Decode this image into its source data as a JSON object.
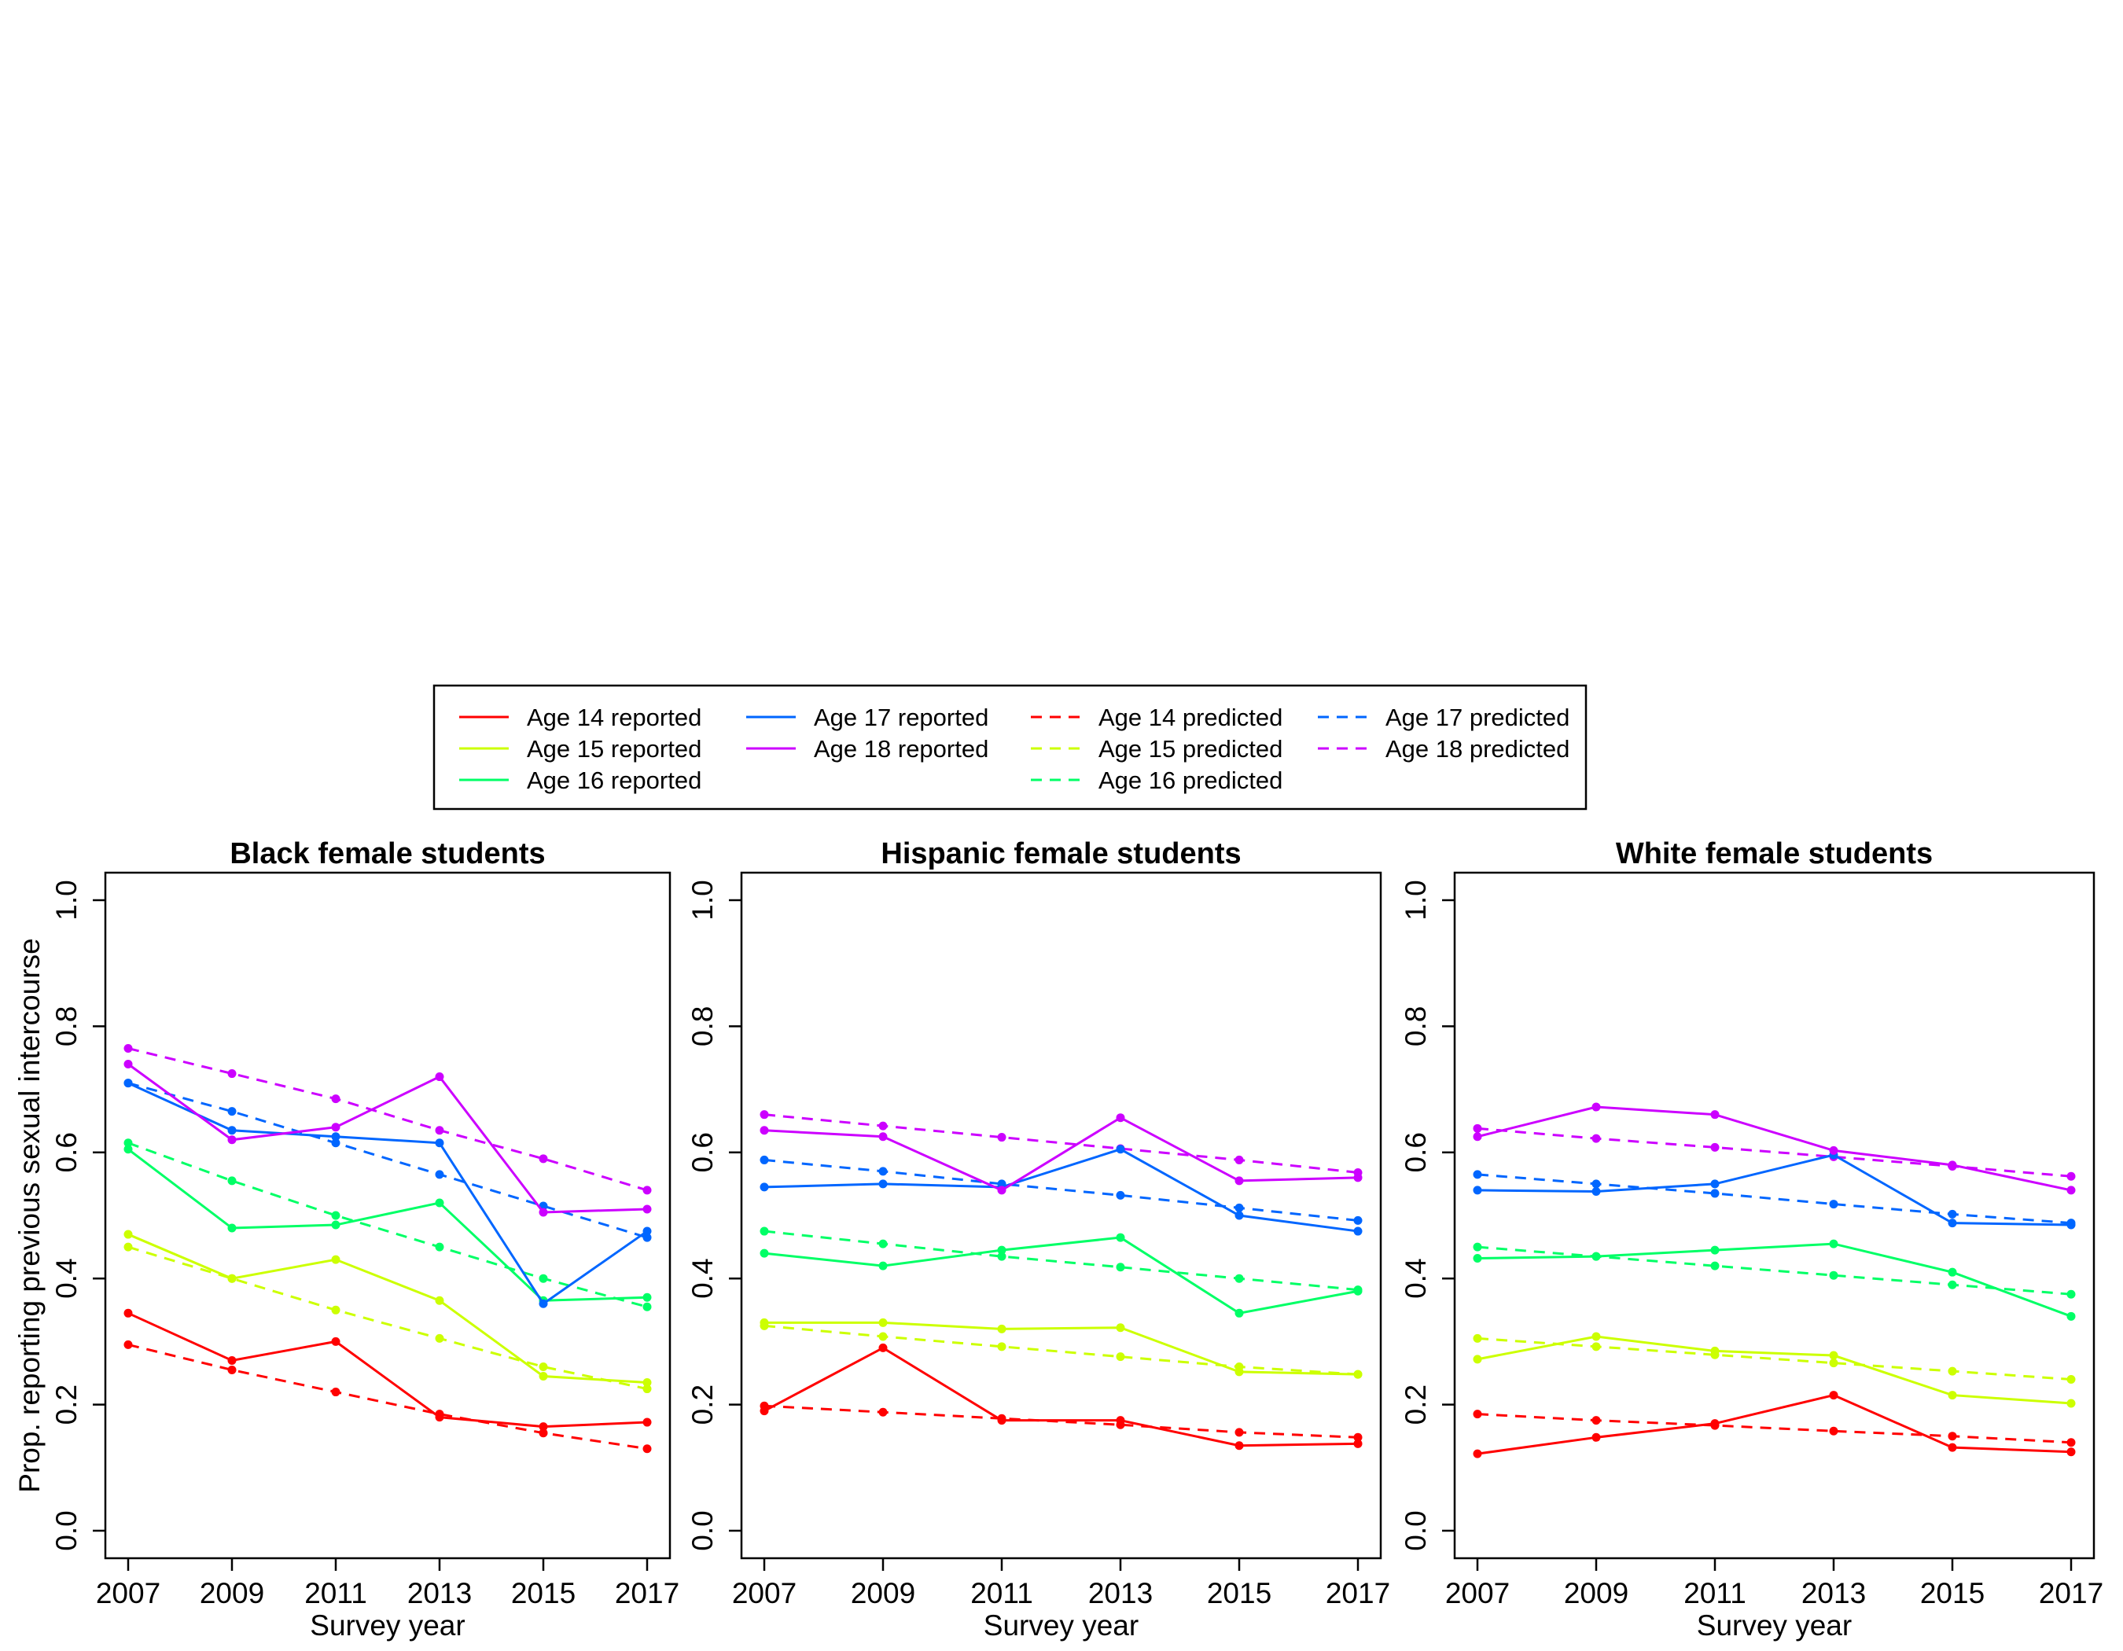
{
  "chart_data": {
    "type": "line",
    "x": [
      2007,
      2009,
      2011,
      2013,
      2015,
      2017
    ],
    "xlim": [
      2007,
      2017
    ],
    "ylim": [
      0,
      1
    ],
    "yticks": [
      "0.0",
      "0.2",
      "0.4",
      "0.6",
      "0.8",
      "1.0"
    ],
    "xticks": [
      "2007",
      "2009",
      "2011",
      "2013",
      "2015",
      "2017"
    ],
    "ylabel": "Prop. reporting previous sexual intercourse",
    "xlabel": "Survey year",
    "grid": false,
    "legend_position": "top",
    "legend": [
      {
        "label": "Age 14 reported",
        "color": "#FF0000",
        "dash": false
      },
      {
        "label": "Age 15 reported",
        "color": "#CCFF00",
        "dash": false
      },
      {
        "label": "Age 16 reported",
        "color": "#00FF66",
        "dash": false
      },
      {
        "label": "Age 17 reported",
        "color": "#0066FF",
        "dash": false
      },
      {
        "label": "Age 18 reported",
        "color": "#CC00FF",
        "dash": false
      },
      {
        "label": "Age 14 predicted",
        "color": "#FF0000",
        "dash": true
      },
      {
        "label": "Age 15 predicted",
        "color": "#CCFF00",
        "dash": true
      },
      {
        "label": "Age 16 predicted",
        "color": "#00FF66",
        "dash": true
      },
      {
        "label": "Age 17 predicted",
        "color": "#0066FF",
        "dash": true
      },
      {
        "label": "Age 18 predicted",
        "color": "#CC00FF",
        "dash": true
      }
    ],
    "panels": [
      {
        "title": "Black female students",
        "series": [
          {
            "age": 14,
            "kind": "reported",
            "color": "#FF0000",
            "values": [
              0.345,
              0.27,
              0.3,
              0.18,
              0.165,
              0.172
            ]
          },
          {
            "age": 15,
            "kind": "reported",
            "color": "#CCFF00",
            "values": [
              0.47,
              0.4,
              0.43,
              0.365,
              0.245,
              0.235
            ]
          },
          {
            "age": 16,
            "kind": "reported",
            "color": "#00FF66",
            "values": [
              0.605,
              0.48,
              0.485,
              0.52,
              0.365,
              0.37
            ]
          },
          {
            "age": 17,
            "kind": "reported",
            "color": "#0066FF",
            "values": [
              0.71,
              0.635,
              0.625,
              0.615,
              0.36,
              0.475
            ]
          },
          {
            "age": 18,
            "kind": "reported",
            "color": "#CC00FF",
            "values": [
              0.74,
              0.62,
              0.64,
              0.72,
              0.505,
              0.51
            ]
          },
          {
            "age": 14,
            "kind": "predicted",
            "color": "#FF0000",
            "values": [
              0.295,
              0.255,
              0.22,
              0.185,
              0.155,
              0.13
            ]
          },
          {
            "age": 15,
            "kind": "predicted",
            "color": "#CCFF00",
            "values": [
              0.45,
              0.4,
              0.35,
              0.305,
              0.26,
              0.225
            ]
          },
          {
            "age": 16,
            "kind": "predicted",
            "color": "#00FF66",
            "values": [
              0.615,
              0.555,
              0.5,
              0.45,
              0.4,
              0.355
            ]
          },
          {
            "age": 17,
            "kind": "predicted",
            "color": "#0066FF",
            "values": [
              0.71,
              0.665,
              0.615,
              0.565,
              0.515,
              0.465
            ]
          },
          {
            "age": 18,
            "kind": "predicted",
            "color": "#CC00FF",
            "values": [
              0.765,
              0.725,
              0.685,
              0.635,
              0.59,
              0.54
            ]
          }
        ]
      },
      {
        "title": "Hispanic female students",
        "series": [
          {
            "age": 14,
            "kind": "reported",
            "color": "#FF0000",
            "values": [
              0.19,
              0.29,
              0.175,
              0.175,
              0.135,
              0.138
            ]
          },
          {
            "age": 15,
            "kind": "reported",
            "color": "#CCFF00",
            "values": [
              0.33,
              0.33,
              0.32,
              0.322,
              0.252,
              0.248
            ]
          },
          {
            "age": 16,
            "kind": "reported",
            "color": "#00FF66",
            "values": [
              0.44,
              0.42,
              0.445,
              0.465,
              0.345,
              0.38
            ]
          },
          {
            "age": 17,
            "kind": "reported",
            "color": "#0066FF",
            "values": [
              0.545,
              0.55,
              0.545,
              0.605,
              0.5,
              0.475
            ]
          },
          {
            "age": 18,
            "kind": "reported",
            "color": "#CC00FF",
            "values": [
              0.635,
              0.625,
              0.54,
              0.655,
              0.555,
              0.56
            ]
          },
          {
            "age": 14,
            "kind": "predicted",
            "color": "#FF0000",
            "values": [
              0.198,
              0.188,
              0.178,
              0.168,
              0.156,
              0.148
            ]
          },
          {
            "age": 15,
            "kind": "predicted",
            "color": "#CCFF00",
            "values": [
              0.325,
              0.308,
              0.292,
              0.276,
              0.26,
              0.248
            ]
          },
          {
            "age": 16,
            "kind": "predicted",
            "color": "#00FF66",
            "values": [
              0.475,
              0.455,
              0.435,
              0.418,
              0.4,
              0.382
            ]
          },
          {
            "age": 17,
            "kind": "predicted",
            "color": "#0066FF",
            "values": [
              0.588,
              0.57,
              0.55,
              0.532,
              0.512,
              0.492
            ]
          },
          {
            "age": 18,
            "kind": "predicted",
            "color": "#CC00FF",
            "values": [
              0.66,
              0.642,
              0.624,
              0.606,
              0.588,
              0.568
            ]
          }
        ]
      },
      {
        "title": "White female students",
        "series": [
          {
            "age": 14,
            "kind": "reported",
            "color": "#FF0000",
            "values": [
              0.122,
              0.148,
              0.17,
              0.215,
              0.132,
              0.125
            ]
          },
          {
            "age": 15,
            "kind": "reported",
            "color": "#CCFF00",
            "values": [
              0.272,
              0.308,
              0.285,
              0.278,
              0.215,
              0.202
            ]
          },
          {
            "age": 16,
            "kind": "reported",
            "color": "#00FF66",
            "values": [
              0.432,
              0.435,
              0.445,
              0.455,
              0.41,
              0.34
            ]
          },
          {
            "age": 17,
            "kind": "reported",
            "color": "#0066FF",
            "values": [
              0.54,
              0.538,
              0.55,
              0.596,
              0.488,
              0.485
            ]
          },
          {
            "age": 18,
            "kind": "reported",
            "color": "#CC00FF",
            "values": [
              0.625,
              0.672,
              0.66,
              0.603,
              0.58,
              0.54
            ]
          },
          {
            "age": 14,
            "kind": "predicted",
            "color": "#FF0000",
            "values": [
              0.185,
              0.175,
              0.167,
              0.158,
              0.15,
              0.14
            ]
          },
          {
            "age": 15,
            "kind": "predicted",
            "color": "#CCFF00",
            "values": [
              0.305,
              0.292,
              0.279,
              0.266,
              0.253,
              0.24
            ]
          },
          {
            "age": 16,
            "kind": "predicted",
            "color": "#00FF66",
            "values": [
              0.45,
              0.435,
              0.42,
              0.405,
              0.39,
              0.375
            ]
          },
          {
            "age": 17,
            "kind": "predicted",
            "color": "#0066FF",
            "values": [
              0.565,
              0.55,
              0.535,
              0.518,
              0.502,
              0.488
            ]
          },
          {
            "age": 18,
            "kind": "predicted",
            "color": "#CC00FF",
            "values": [
              0.638,
              0.622,
              0.608,
              0.593,
              0.578,
              0.562
            ]
          }
        ]
      }
    ]
  }
}
